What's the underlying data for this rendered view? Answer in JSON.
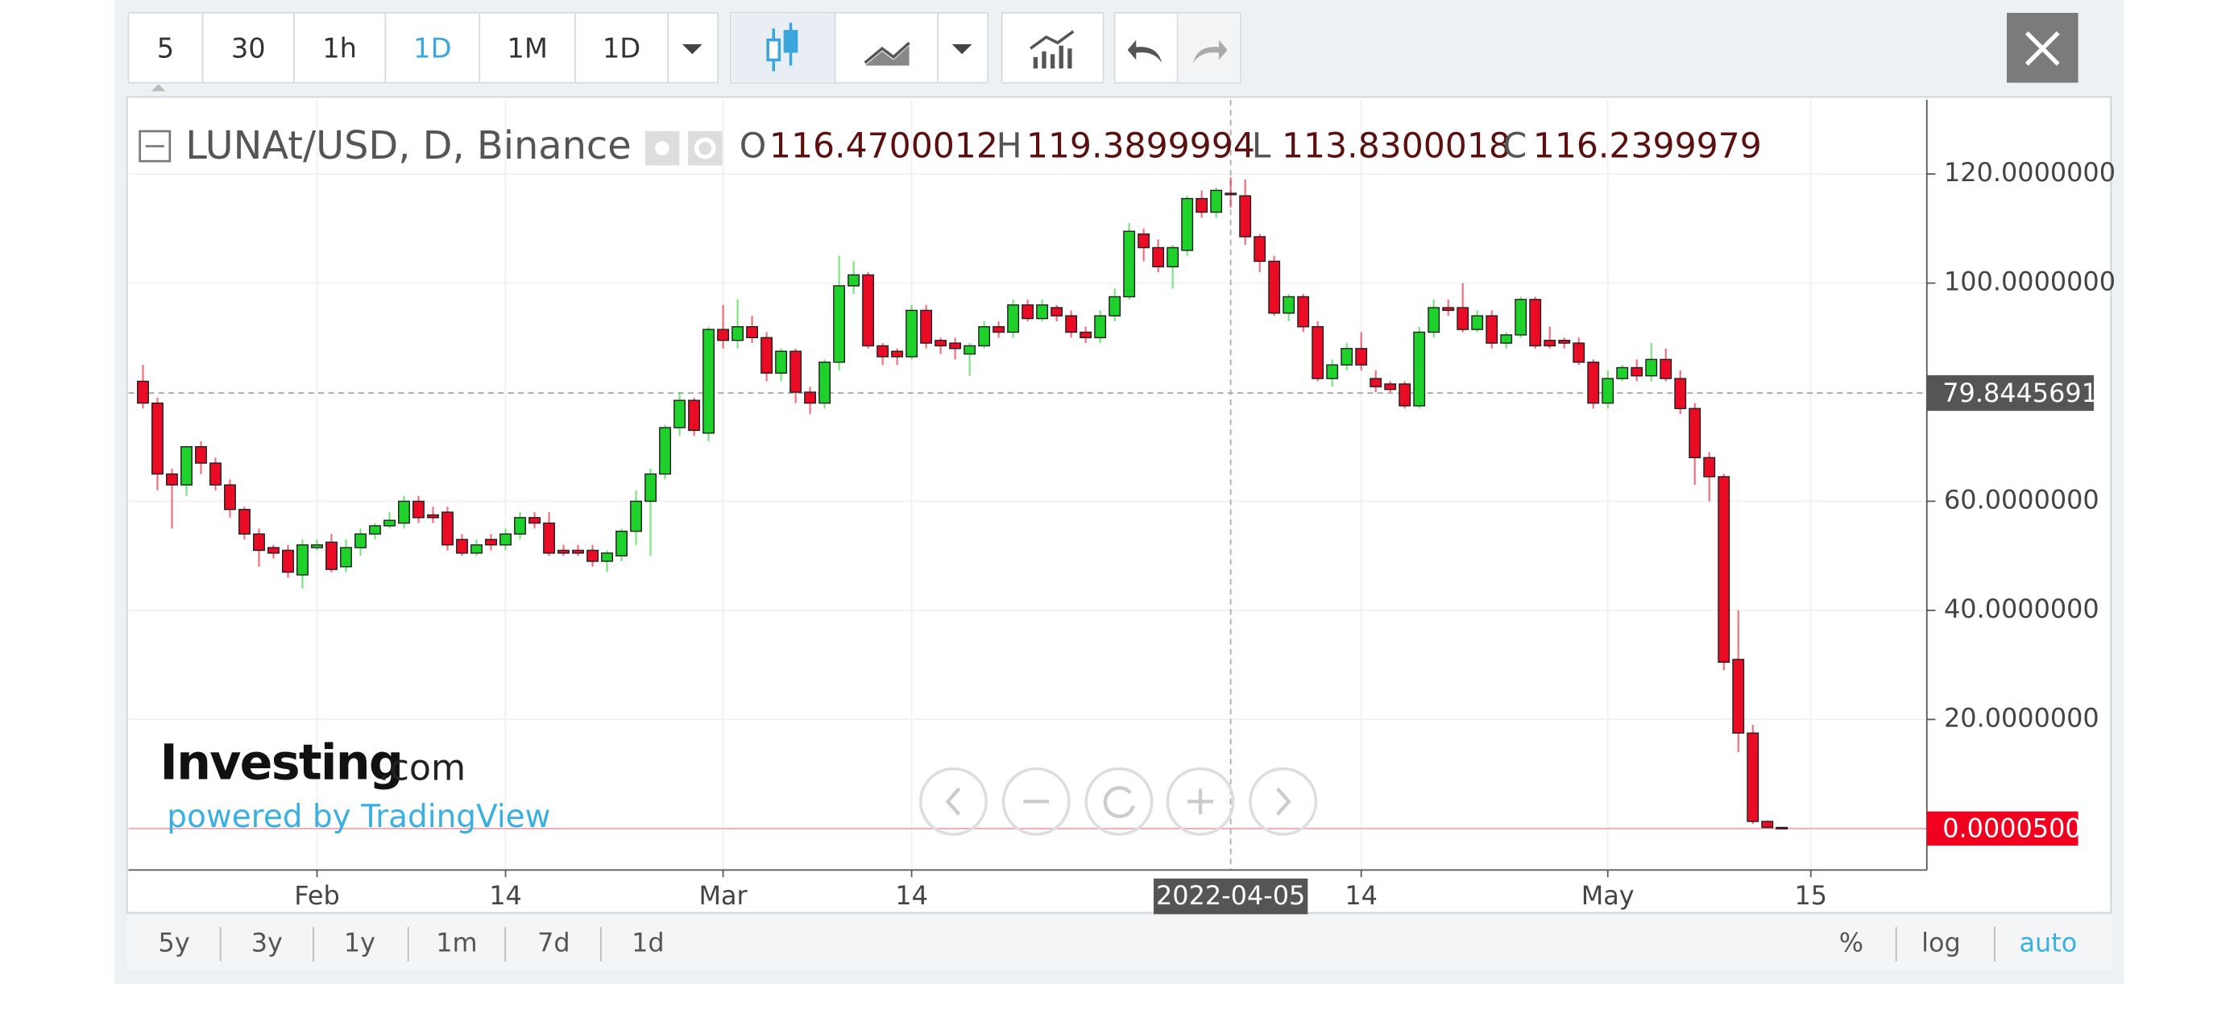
{
  "chart_data": {
    "type": "candlestick",
    "title": "LUNAt/USD, D, Binance",
    "ohlc_labels": [
      "O",
      "H",
      "L",
      "C"
    ],
    "x": [
      "2022-01-20",
      "2022-01-21",
      "2022-01-22",
      "2022-01-23",
      "2022-01-24",
      "2022-01-25",
      "2022-01-26",
      "2022-01-27",
      "2022-01-28",
      "2022-01-29",
      "2022-01-30",
      "2022-01-31",
      "2022-02-01",
      "2022-02-02",
      "2022-02-03",
      "2022-02-04",
      "2022-02-05",
      "2022-02-06",
      "2022-02-07",
      "2022-02-08",
      "2022-02-09",
      "2022-02-10",
      "2022-02-11",
      "2022-02-12",
      "2022-02-13",
      "2022-02-14",
      "2022-02-15",
      "2022-02-16",
      "2022-02-17",
      "2022-02-18",
      "2022-02-19",
      "2022-02-20",
      "2022-02-21",
      "2022-02-22",
      "2022-02-23",
      "2022-02-24",
      "2022-02-25",
      "2022-02-26",
      "2022-02-27",
      "2022-02-28",
      "2022-03-01",
      "2022-03-02",
      "2022-03-03",
      "2022-03-04",
      "2022-03-05",
      "2022-03-06",
      "2022-03-07",
      "2022-03-08",
      "2022-03-09",
      "2022-03-10",
      "2022-03-11",
      "2022-03-12",
      "2022-03-13",
      "2022-03-14",
      "2022-03-15",
      "2022-03-16",
      "2022-03-17",
      "2022-03-18",
      "2022-03-19",
      "2022-03-20",
      "2022-03-21",
      "2022-03-22",
      "2022-03-23",
      "2022-03-24",
      "2022-03-25",
      "2022-03-26",
      "2022-03-27",
      "2022-03-28",
      "2022-03-29",
      "2022-03-30",
      "2022-03-31",
      "2022-04-01",
      "2022-04-02",
      "2022-04-03",
      "2022-04-04",
      "2022-04-05",
      "2022-04-06",
      "2022-04-07",
      "2022-04-08",
      "2022-04-09",
      "2022-04-10",
      "2022-04-11",
      "2022-04-12",
      "2022-04-13",
      "2022-04-14",
      "2022-04-15",
      "2022-04-16",
      "2022-04-17",
      "2022-04-18",
      "2022-04-19",
      "2022-04-20",
      "2022-04-21",
      "2022-04-22",
      "2022-04-23",
      "2022-04-24",
      "2022-04-25",
      "2022-04-26",
      "2022-04-27",
      "2022-04-28",
      "2022-04-29",
      "2022-04-30",
      "2022-05-01",
      "2022-05-02",
      "2022-05-03",
      "2022-05-04",
      "2022-05-05",
      "2022-05-06",
      "2022-05-07",
      "2022-05-08",
      "2022-05-09",
      "2022-05-10",
      "2022-05-11",
      "2022-05-12",
      "2022-05-13"
    ],
    "open": [
      82,
      78,
      65,
      63,
      70,
      67,
      63,
      58.5,
      54,
      51.5,
      51,
      46.5,
      51.5,
      52.5,
      48,
      51.5,
      54,
      55.5,
      56,
      60,
      57.5,
      58,
      53,
      50.5,
      53,
      52,
      54,
      57,
      56,
      51,
      51,
      51,
      49,
      50,
      54.5,
      60,
      65,
      73.5,
      78.5,
      72.5,
      91.5,
      89.5,
      92,
      90,
      83.5,
      87.5,
      80,
      78,
      85.5,
      99.5,
      101.5,
      88.5,
      87.5,
      86.5,
      95,
      89.5,
      89,
      87,
      88.5,
      92,
      91,
      96,
      93.5,
      95.5,
      94,
      91,
      90,
      94,
      97.5,
      109,
      106.5,
      103,
      106,
      115.5,
      113,
      116.4700012,
      116,
      108.5,
      104,
      94.5,
      97.5,
      92,
      82.5,
      85,
      88,
      82.5,
      81.5,
      81.5,
      77.5,
      91,
      95.5,
      95.5,
      91.5,
      94,
      89,
      90.5,
      97,
      89.5,
      89.5,
      89,
      85.5,
      78,
      82.5,
      84.5,
      83,
      86,
      82.5,
      77,
      68,
      64.5,
      31,
      17.5,
      1.3,
      0.2
    ],
    "high": [
      85,
      79,
      66,
      70,
      71,
      68,
      64,
      59,
      55,
      52,
      52,
      53,
      53,
      54,
      53,
      55,
      56,
      58,
      61,
      61,
      59,
      59,
      54,
      53,
      54,
      55,
      58,
      58,
      58,
      52,
      52,
      52,
      51,
      55,
      62,
      66,
      74,
      80,
      79,
      92,
      96,
      97,
      94,
      91,
      88,
      88,
      81,
      86,
      105,
      104,
      102,
      89,
      88,
      96,
      96,
      90,
      90,
      89,
      93,
      93,
      97,
      97,
      97,
      96,
      95,
      92,
      95,
      99,
      111,
      110,
      108,
      107,
      116,
      117,
      117.5,
      119.3899994,
      119,
      109,
      105,
      98,
      98,
      93,
      86,
      89,
      91,
      84,
      82,
      82,
      92,
      97,
      97,
      100,
      95,
      95,
      91,
      97.5,
      97.5,
      92,
      90,
      90,
      86,
      84,
      85,
      86,
      89,
      88,
      84,
      78,
      69,
      65,
      40,
      19,
      1.5,
      0.3
    ],
    "low": [
      77,
      62,
      55,
      61,
      65,
      62,
      57,
      53,
      48,
      49.5,
      46,
      44,
      51,
      47,
      47,
      50,
      53,
      55,
      55,
      56,
      56,
      51,
      50,
      50,
      51,
      51,
      53,
      55,
      50,
      50,
      50,
      48,
      47,
      49,
      52,
      50,
      64,
      72,
      72,
      71,
      88,
      88,
      89,
      82,
      82,
      78,
      76,
      77,
      84,
      98,
      88,
      85,
      85,
      86,
      88,
      87,
      86,
      83,
      88,
      90,
      90,
      93,
      93,
      93,
      90,
      89,
      89,
      93,
      97,
      104,
      102,
      99,
      105,
      112,
      112,
      113.8300018,
      107,
      102,
      94,
      93,
      91,
      82,
      81,
      84,
      84,
      80,
      80,
      77,
      77,
      90,
      94,
      91,
      91,
      88,
      88,
      90,
      88,
      88,
      88,
      85,
      77,
      77,
      82,
      82,
      82,
      82,
      76,
      63,
      60,
      29,
      14,
      0.8,
      0.1,
      1e-05
    ],
    "close": [
      78,
      65,
      63,
      70,
      67,
      63,
      58.5,
      54,
      51,
      50.5,
      47,
      52,
      52,
      47.5,
      51.5,
      54,
      55.5,
      56.5,
      60,
      57,
      57,
      52,
      50.5,
      52,
      52,
      54,
      57,
      56,
      50.5,
      50.5,
      50.5,
      49,
      50.5,
      54.5,
      60,
      65,
      73.5,
      78.5,
      73,
      91.5,
      89.5,
      92,
      90,
      83.5,
      87.5,
      80,
      78,
      85.5,
      99.5,
      101.5,
      88.5,
      86.5,
      86.5,
      95,
      89,
      88.5,
      88,
      88.5,
      92,
      91,
      96,
      93.5,
      96,
      94,
      91,
      90,
      94,
      97.5,
      109.5,
      106.5,
      103,
      106.5,
      115.5,
      113,
      117,
      116.2399979,
      108.5,
      104,
      94.5,
      97.5,
      92,
      82.5,
      85,
      88,
      85,
      81,
      80.5,
      77.5,
      91,
      95.5,
      95,
      91.5,
      94,
      89,
      90.5,
      97,
      88.5,
      88.5,
      89,
      85.5,
      78,
      82.5,
      84.5,
      83,
      86,
      82.5,
      77,
      68,
      64.5,
      30.5,
      17.5,
      1.3,
      0.2,
      5e-05
    ],
    "up_color": "#1fd12b",
    "down_color": "#ea0b25",
    "xlim": [
      "2022-01-19",
      "2022-05-23"
    ],
    "xticks": [
      {
        "value": "2022-02-01",
        "label": "Feb"
      },
      {
        "value": "2022-02-14",
        "label": "14"
      },
      {
        "value": "2022-03-01",
        "label": "Mar"
      },
      {
        "value": "2022-03-14",
        "label": "14"
      },
      {
        "value": "2022-04-14",
        "label": "14"
      },
      {
        "value": "2022-05-01",
        "label": "May"
      },
      {
        "value": "2022-05-15",
        "label": "15"
      }
    ],
    "ylim": [
      -7.6,
      133.6
    ],
    "yticks": [
      {
        "value": 20,
        "label": "20.0000000"
      },
      {
        "value": 40,
        "label": "40.0000000"
      },
      {
        "value": 60,
        "label": "60.0000000"
      },
      {
        "value": 100,
        "label": "100.0000000"
      },
      {
        "value": 120,
        "label": "120.0000000"
      }
    ],
    "grid": true,
    "log_scale": false,
    "crosshair": {
      "x": "2022-04-05",
      "y": 79.8445691
    },
    "last_price": {
      "value": 5e-05,
      "label": "0.0000500"
    }
  },
  "ui": {
    "intervals": [
      "5",
      "30",
      "1h",
      "1D",
      "1M",
      "1D"
    ],
    "ranges": [
      "5y",
      "3y",
      "1y",
      "1m",
      "7d",
      "1d"
    ],
    "scale_options": [
      "%",
      "log",
      "auto"
    ],
    "watermark": {
      "name": "Investing",
      "suffix": ".com",
      "credit": "powered by TradingView"
    }
  }
}
